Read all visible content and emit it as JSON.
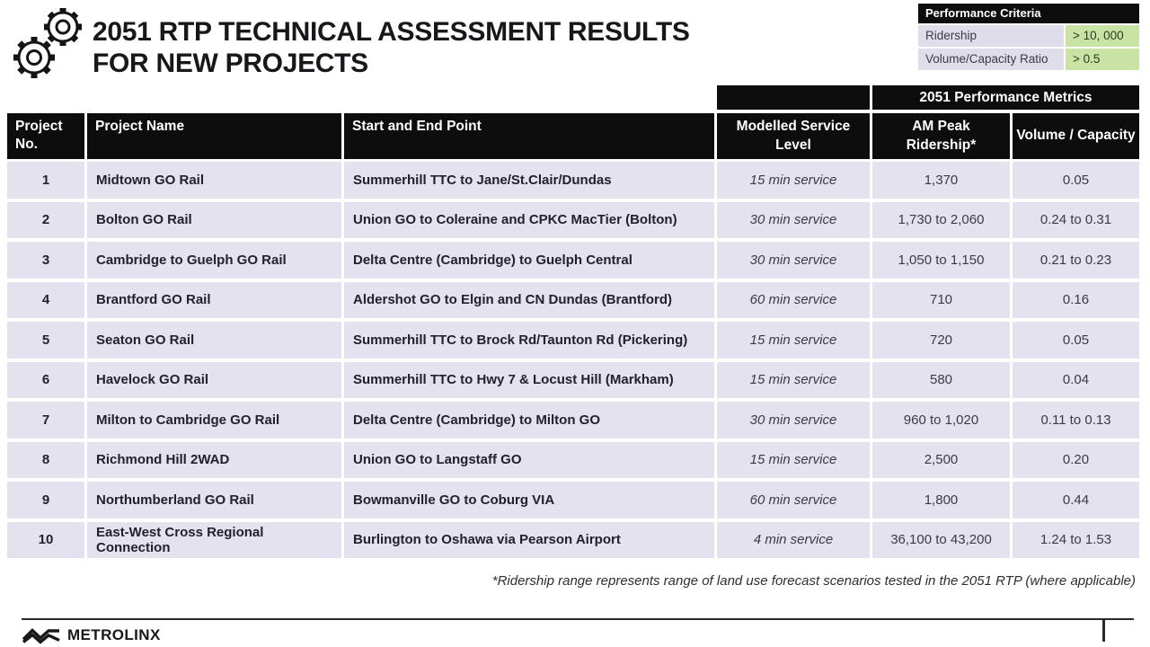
{
  "header": {
    "title_line1": "2051 RTP TECHNICAL ASSESSMENT RESULTS",
    "title_line2": "FOR NEW PROJECTS",
    "icon": "gears-icon"
  },
  "criteria": {
    "title": "Performance Criteria",
    "rows": [
      {
        "label": "Ridership",
        "value": "> 10, 000"
      },
      {
        "label": "Volume/Capacity Ratio",
        "value": "> 0.5"
      }
    ]
  },
  "table": {
    "group_header": "2051 Performance Metrics",
    "columns": {
      "no": "Project No.",
      "name": "Project Name",
      "route": "Start and End Point",
      "service": "Modelled Service Level",
      "ridership": "AM Peak Ridership*",
      "vc": "Volume / Capacity"
    },
    "rows": [
      {
        "no": "1",
        "name": "Midtown GO Rail",
        "route": "Summerhill TTC to Jane/St.Clair/Dundas",
        "service": "15 min service",
        "ridership": "1,370",
        "vc": "0.05"
      },
      {
        "no": "2",
        "name": "Bolton GO Rail",
        "route": "Union GO to Coleraine and CPKC MacTier (Bolton)",
        "service": "30 min service",
        "ridership": "1,730 to 2,060",
        "vc": "0.24 to 0.31"
      },
      {
        "no": "3",
        "name": "Cambridge to Guelph GO Rail",
        "route": "Delta Centre (Cambridge) to Guelph Central",
        "service": "30 min service",
        "ridership": "1,050 to 1,150",
        "vc": "0.21 to 0.23"
      },
      {
        "no": "4",
        "name": "Brantford GO Rail",
        "route": "Aldershot GO to Elgin and CN Dundas (Brantford)",
        "service": "60 min service",
        "ridership": "710",
        "vc": "0.16"
      },
      {
        "no": "5",
        "name": "Seaton GO Rail",
        "route": "Summerhill TTC to Brock Rd/Taunton Rd (Pickering)",
        "service": "15 min service",
        "ridership": "720",
        "vc": "0.05"
      },
      {
        "no": "6",
        "name": "Havelock GO Rail",
        "route": "Summerhill TTC to Hwy 7 & Locust Hill (Markham)",
        "service": "15 min service",
        "ridership": "580",
        "vc": "0.04"
      },
      {
        "no": "7",
        "name": "Milton to Cambridge GO Rail",
        "route": "Delta Centre (Cambridge) to Milton GO",
        "service": "30 min service",
        "ridership": "960 to 1,020",
        "vc": "0.11 to 0.13"
      },
      {
        "no": "8",
        "name": "Richmond Hill 2WAD",
        "route": "Union GO to Langstaff GO",
        "service": "15 min service",
        "ridership": "2,500",
        "vc": "0.20"
      },
      {
        "no": "9",
        "name": "Northumberland GO Rail",
        "route": "Bowmanville GO to Coburg VIA",
        "service": "60 min service",
        "ridership": "1,800",
        "vc": "0.44"
      },
      {
        "no": "10",
        "name": "East-West Cross Regional Connection",
        "route": "Burlington to Oshawa via Pearson Airport",
        "service": "4 min service",
        "ridership": "36,100 to 43,200",
        "vc": "1.24 to 1.53"
      }
    ]
  },
  "footnote": "*Ridership range represents range of land use forecast scenarios tested in the 2051 RTP (where applicable)",
  "footer": {
    "brand": "METROLINX",
    "logo": "metrolinx-logo"
  },
  "colors": {
    "header_bg": "#0d0d0d",
    "row_bg": "#e3e2ee",
    "criteria_label_bg": "#dedde9",
    "criteria_value_bg": "#c8e3a3"
  }
}
